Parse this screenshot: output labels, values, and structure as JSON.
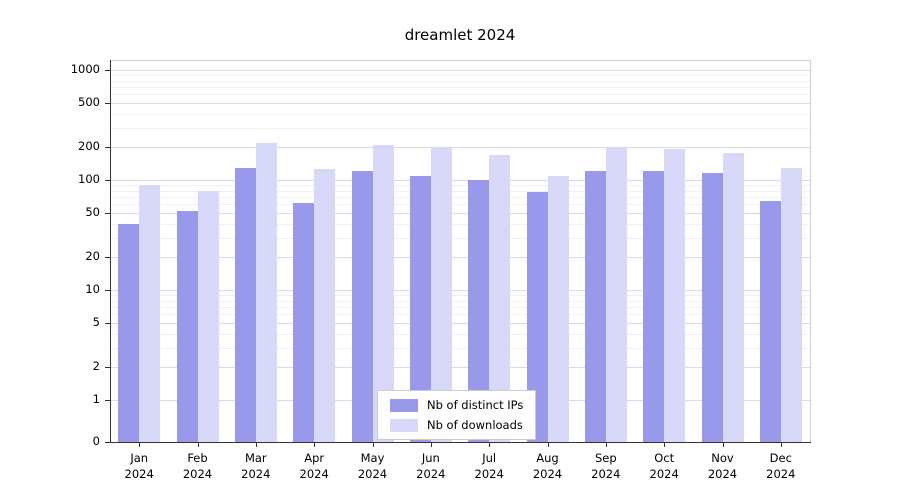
{
  "title": "dreamlet 2024",
  "chart_data": {
    "type": "bar",
    "title": "dreamlet 2024",
    "yscale": "symlog",
    "grid": true,
    "legend_position": "lower center",
    "ylim": [
      0,
      1400
    ],
    "yticks": [
      0,
      1,
      2,
      5,
      10,
      20,
      50,
      100,
      200,
      500,
      1000
    ],
    "categories": [
      "Jan\n2024",
      "Feb\n2024",
      "Mar\n2024",
      "Apr\n2024",
      "May\n2024",
      "Jun\n2024",
      "Jul\n2024",
      "Aug\n2024",
      "Sep\n2024",
      "Oct\n2024",
      "Nov\n2024",
      "Dec\n2024"
    ],
    "series": [
      {
        "name": "Nb of distinct IPs",
        "color": "#9999eb",
        "values": [
          40,
          52,
          130,
          62,
          120,
          108,
          100,
          78,
          120,
          120,
          115,
          65
        ]
      },
      {
        "name": "Nb of downloads",
        "color": "#d8d8f8",
        "values": [
          90,
          80,
          215,
          125,
          210,
          200,
          170,
          108,
          200,
          190,
          178,
          130
        ]
      }
    ]
  }
}
